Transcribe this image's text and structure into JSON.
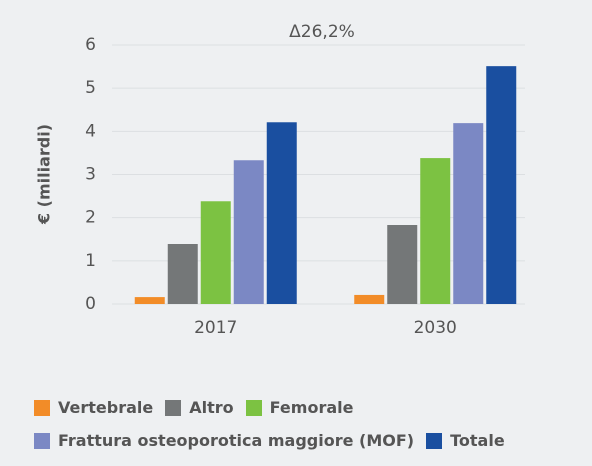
{
  "chart_data": {
    "type": "bar",
    "annotation": "Δ26,2%",
    "y_label": "€ (miliardi)",
    "categories": [
      "2017",
      "2030"
    ],
    "series": [
      {
        "name": "Vertebrale",
        "color": "#f28c28",
        "values": [
          0.16,
          0.21
        ]
      },
      {
        "name": "Altro",
        "color": "#747778",
        "values": [
          1.39,
          1.83
        ]
      },
      {
        "name": "Femorale",
        "color": "#7cc242",
        "values": [
          2.38,
          3.38
        ]
      },
      {
        "name": "Frattura osteoporotica maggiore (MOF)",
        "color": "#7b88c4",
        "values": [
          3.33,
          4.19
        ]
      },
      {
        "name": "Totale",
        "color": "#1a4fa0",
        "values": [
          4.21,
          5.51
        ]
      }
    ],
    "ylim": [
      0,
      6
    ],
    "yticks": [
      0,
      1,
      2,
      3,
      4,
      5,
      6
    ],
    "grid": true,
    "legend": "bottom"
  }
}
